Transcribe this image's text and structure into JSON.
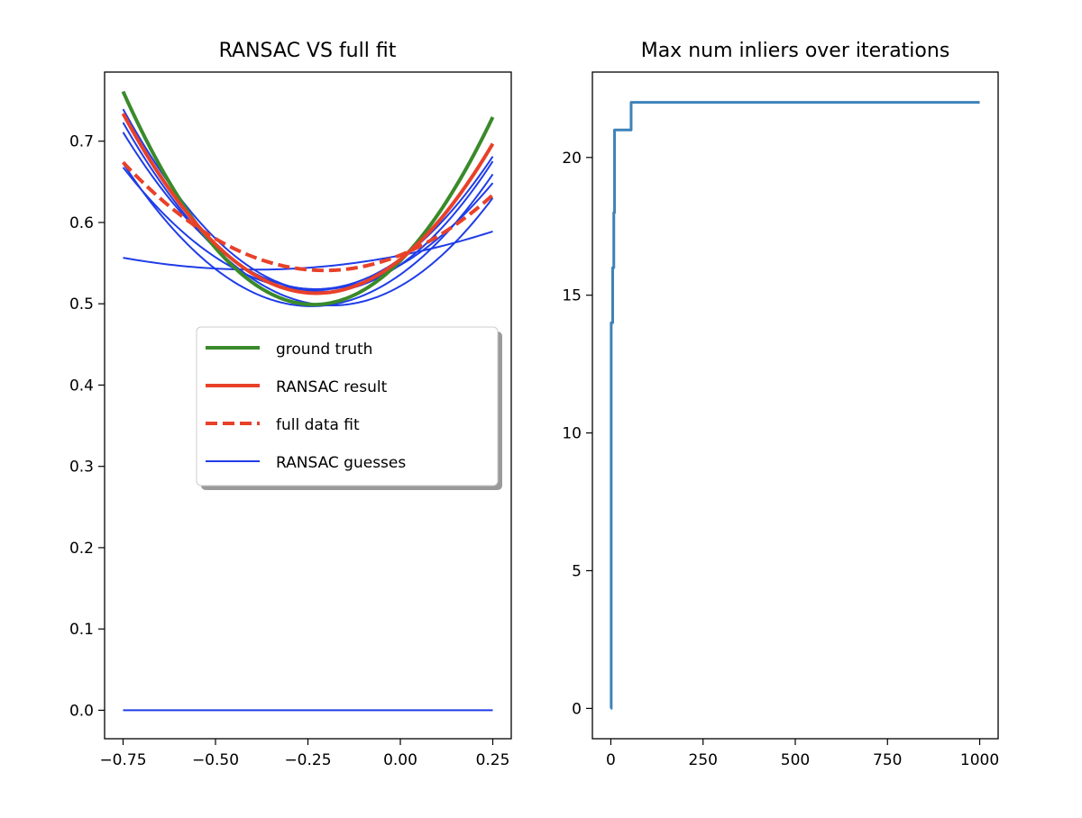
{
  "chart_data": [
    {
      "type": "line",
      "title": "RANSAC VS full fit",
      "xlabel": "",
      "ylabel": "",
      "xlim": [
        -0.8,
        0.3
      ],
      "ylim": [
        -0.035,
        0.785
      ],
      "xticks": [
        -0.75,
        -0.5,
        -0.25,
        0.0,
        0.25
      ],
      "xtick_labels": [
        "−0.75",
        "−0.50",
        "−0.25",
        "0.00",
        "0.25"
      ],
      "yticks": [
        0.0,
        0.1,
        0.2,
        0.3,
        0.4,
        0.5,
        0.6,
        0.7
      ],
      "ytick_labels": [
        "0.0",
        "0.1",
        "0.2",
        "0.3",
        "0.4",
        "0.5",
        "0.6",
        "0.7"
      ],
      "grid": false,
      "legend_position": "center-right",
      "legend": [
        "ground truth",
        "RANSAC result",
        "full data fit",
        "RANSAC guesses"
      ],
      "x_range": [
        -0.75,
        0.25
      ],
      "series": [
        {
          "name": "RANSAC guesses",
          "color": "#1f3de8",
          "style": "thin",
          "quad": [
            0.711,
            -0.229,
            0.518
          ]
        },
        {
          "name": "RANSAC guesses",
          "color": "#1f3de8",
          "style": "thin",
          "quad": [
            0.676,
            -0.24,
            0.497
          ]
        },
        {
          "name": "RANSAC guesses",
          "color": "#1f3de8",
          "style": "thin",
          "quad": [
            0.564,
            -0.233,
            0.517
          ]
        },
        {
          "name": "RANSAC guesses",
          "color": "#1f3de8",
          "style": "thin",
          "quad": [
            0.764,
            -0.208,
            0.515
          ]
        },
        {
          "name": "RANSAC guesses",
          "color": "#1f3de8",
          "style": "thin",
          "quad": [
            0.702,
            -0.184,
            0.498
          ]
        },
        {
          "name": "RANSAC guesses",
          "color": "#1f3de8",
          "style": "thin",
          "quad": [
            0.114,
            -0.392,
            0.542
          ]
        },
        {
          "name": "RANSAC guesses",
          "color": "#1f3de8",
          "style": "thin",
          "quad": [
            0.0,
            0.0,
            0.0
          ]
        },
        {
          "name": "ground truth",
          "color": "#3a8a2a",
          "style": "thick",
          "quad": [
            0.9844,
            -0.234,
            0.499
          ]
        },
        {
          "name": "RANSAC result",
          "color": "#e8412a",
          "style": "thick",
          "quad": [
            0.808,
            -0.227,
            0.513
          ]
        },
        {
          "name": "full data fit",
          "color": "#e8412a",
          "style": "dashed",
          "quad": [
            0.448,
            -0.205,
            0.541
          ]
        }
      ]
    },
    {
      "type": "line",
      "title": "Max num inliers over iterations",
      "xlabel": "",
      "ylabel": "",
      "xlim": [
        -50,
        1050
      ],
      "ylim": [
        -1.1,
        23.1
      ],
      "xticks": [
        0,
        250,
        500,
        750,
        1000
      ],
      "xtick_labels": [
        "0",
        "250",
        "500",
        "750",
        "1000"
      ],
      "yticks": [
        0,
        5,
        10,
        15,
        20
      ],
      "ytick_labels": [
        "0",
        "5",
        "10",
        "15",
        "20"
      ],
      "grid": false,
      "series": [
        {
          "color": "#3f82b9",
          "x": [
            0,
            1,
            1,
            5,
            5,
            8,
            8,
            10,
            10,
            13,
            13,
            55,
            55,
            1000
          ],
          "y": [
            0,
            0,
            14,
            14,
            16,
            16,
            18,
            18,
            21,
            21,
            21,
            21,
            22,
            22
          ]
        }
      ]
    }
  ]
}
